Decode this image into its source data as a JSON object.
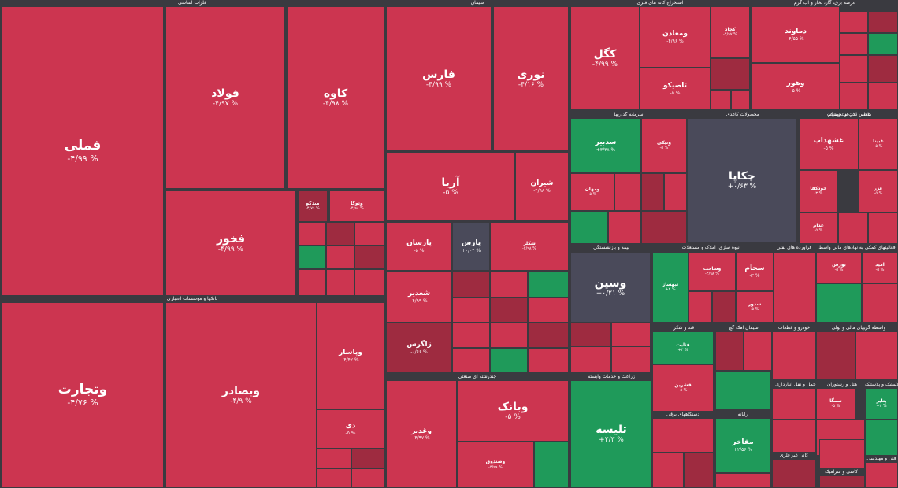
{
  "colors": {
    "down": "#cc3550",
    "down_dark": "#9e2b40",
    "up": "#1f9a5a",
    "flat": "#4a4a5a",
    "background": "#3a3a40"
  },
  "sectors": [
    {
      "id": "s1",
      "title": "فلزات اساسی"
    },
    {
      "id": "s2",
      "title": "سیمان"
    },
    {
      "id": "s3",
      "title": "استخراج کانه های فلزی"
    },
    {
      "id": "s4",
      "title": "عرضه برق، گاز، بخار و آب گرم"
    },
    {
      "id": "s5",
      "title": "بانکها و موسسات اعتباری"
    },
    {
      "id": "s6",
      "title": "سرمایه گذاریها"
    },
    {
      "id": "s7",
      "title": "محصولات کاغذی"
    },
    {
      "id": "s8",
      "title": "قند و شکر"
    },
    {
      "id": "s9",
      "title": "چندرشته ای صنعتی"
    },
    {
      "id": "s10",
      "title": "زراعت و خدمات وابسته"
    },
    {
      "id": "s11",
      "title": "ماشین آلات و تجهیزات"
    },
    {
      "id": "s12",
      "title": "انبوه سازی، املاک و مستغلات"
    },
    {
      "id": "s13",
      "title": "بیمه و بازنشستگی"
    },
    {
      "id": "s14",
      "title": "خودرو و قطعات"
    },
    {
      "id": "s15",
      "title": "فراورده های نفتی"
    },
    {
      "id": "s16",
      "title": "رایانه"
    },
    {
      "id": "s17",
      "title": "حمل و نقل انبارداری"
    },
    {
      "id": "s18",
      "title": "هتل و رستوران"
    },
    {
      "id": "s19",
      "title": "لاستیک و پلاستیک"
    },
    {
      "id": "s20",
      "title": "فعالیتهای کمکی به نهادهای مالی واسط"
    },
    {
      "id": "s21",
      "title": "کاشی و سرامیک"
    },
    {
      "id": "s22",
      "title": "فنی و مهندسی"
    },
    {
      "id": "s23",
      "title": "سیمان آهک گچ"
    },
    {
      "id": "s24",
      "title": "دستگاههای برقی"
    },
    {
      "id": "s25",
      "title": "محصولات"
    },
    {
      "id": "s26",
      "title": "واسطه گریهای مالی و پولی"
    },
    {
      "id": "s27",
      "title": "غذایی بجز قند و شکر"
    },
    {
      "id": "s28",
      "title": "کانی غیر فلزی"
    }
  ],
  "stocks": [
    {
      "symbol": "فملی",
      "change": "-۴/۹۹ %",
      "tone": "down"
    },
    {
      "symbol": "فولاد",
      "change": "-۴/۹۷ %",
      "tone": "down"
    },
    {
      "symbol": "کاوه",
      "change": "-۴/۹۸ %",
      "tone": "down"
    },
    {
      "symbol": "فخوز",
      "change": "-۴/۹۹ %",
      "tone": "down"
    },
    {
      "symbol": "میدکو",
      "change": "-۴/۷۶ %",
      "tone": "down_dark"
    },
    {
      "symbol": "وتوکا",
      "change": "-۴/۹۸ %",
      "tone": "down"
    },
    {
      "symbol": "فارس",
      "change": "-۴/۹۹ %",
      "tone": "down"
    },
    {
      "symbol": "نوری",
      "change": "-۴/۱۶ %",
      "tone": "down"
    },
    {
      "symbol": "آریا",
      "change": "-۵ %",
      "tone": "down"
    },
    {
      "symbol": "شیران",
      "change": "-۴/۹۸ %",
      "tone": "down"
    },
    {
      "symbol": "پارسان",
      "change": "-۵ %",
      "tone": "down"
    },
    {
      "symbol": "پارس",
      "change": "+۰/۰۴ %",
      "tone": "flat"
    },
    {
      "symbol": "شکلر",
      "change": "-۴/۹۸ %",
      "tone": "down"
    },
    {
      "symbol": "شغدیر",
      "change": "-۴/۹۹ %",
      "tone": "down"
    },
    {
      "symbol": "زاگرس",
      "change": "-۰/۶۶ %",
      "tone": "down_dark"
    },
    {
      "symbol": "کگل",
      "change": "-۴/۹۹ %",
      "tone": "down"
    },
    {
      "symbol": "ومعادن",
      "change": "-۴/۹۶ %",
      "tone": "down"
    },
    {
      "symbol": "کچاد",
      "change": "-۴/۹۷ %",
      "tone": "down"
    },
    {
      "symbol": "تاصیکو",
      "change": "-۵ %",
      "tone": "down"
    },
    {
      "symbol": "دماوند",
      "change": "-۴/۵۵ %",
      "tone": "down"
    },
    {
      "symbol": "وهور",
      "change": "-۵ %",
      "tone": "down"
    },
    {
      "symbol": "سدبیر",
      "change": "+۳/۳۸ %",
      "tone": "up"
    },
    {
      "symbol": "ونیکی",
      "change": "-۵ %",
      "tone": "down"
    },
    {
      "symbol": "ومهان",
      "change": "-۵ %",
      "tone": "down"
    },
    {
      "symbol": "چکاپا",
      "change": "+۰/۶۳ %",
      "tone": "flat"
    },
    {
      "symbol": "غشهداب",
      "change": "-۵ %",
      "tone": "down"
    },
    {
      "symbol": "غبینا",
      "change": "-۵ %",
      "tone": "down"
    },
    {
      "symbol": "خودکفا",
      "change": "-۳ %",
      "tone": "down"
    },
    {
      "symbol": "غزر",
      "change": "-۵ %",
      "tone": "down"
    },
    {
      "symbol": "غدام",
      "change": "-۵ %",
      "tone": "down"
    },
    {
      "symbol": "وسین",
      "change": "+۰/۲۱ %",
      "tone": "flat"
    },
    {
      "symbol": "ثبهساز",
      "change": "+۲ %",
      "tone": "up"
    },
    {
      "symbol": "وساخت",
      "change": "-۴/۹۸ %",
      "tone": "down"
    },
    {
      "symbol": "سجام",
      "change": "-۳ %",
      "tone": "down"
    },
    {
      "symbol": "سدور",
      "change": "-۵ %",
      "tone": "down"
    },
    {
      "symbol": "بورس",
      "change": "-۵ %",
      "tone": "down"
    },
    {
      "symbol": "امید",
      "change": "-۵ %",
      "tone": "down"
    },
    {
      "symbol": "وتجارت",
      "change": "-۴/۷۶ %",
      "tone": "down"
    },
    {
      "symbol": "وبصادر",
      "change": "-۴/۹ %",
      "tone": "down"
    },
    {
      "symbol": "وپاسار",
      "change": "-۴/۴۲ %",
      "tone": "down"
    },
    {
      "symbol": "دی",
      "change": "-۵ %",
      "tone": "down"
    },
    {
      "symbol": "وبانک",
      "change": "-۵ %",
      "tone": "down"
    },
    {
      "symbol": "وغدیر",
      "change": "-۴/۹۷ %",
      "tone": "down"
    },
    {
      "symbol": "وصندوق",
      "change": "-۴/۹۹ %",
      "tone": "down"
    },
    {
      "symbol": "تلیسه",
      "change": "+۲/۳ %",
      "tone": "up"
    },
    {
      "symbol": "قثابت",
      "change": "+۳ %",
      "tone": "up"
    },
    {
      "symbol": "قشرین",
      "change": "-۵ %",
      "tone": "down"
    },
    {
      "symbol": "مفاخر",
      "change": "+۲/۵۶ %",
      "tone": "up"
    },
    {
      "symbol": "سمگا",
      "change": "-۵ %",
      "tone": "down"
    },
    {
      "symbol": "پتایر",
      "change": "+۲ %",
      "tone": "up"
    }
  ],
  "filler_tones": [
    "down",
    "down_dark",
    "down",
    "up",
    "down",
    "down_dark",
    "down",
    "down"
  ]
}
